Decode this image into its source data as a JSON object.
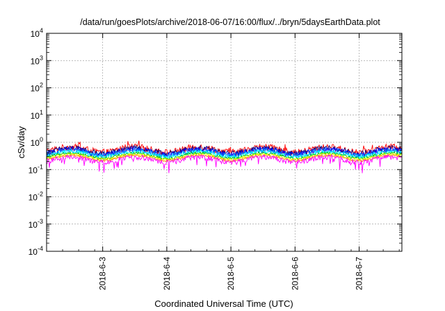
{
  "chart_data": {
    "type": "line",
    "title": "/data/run/goesPlots/archive/2018-06-07/16:00/flux/../bryn/5daysEarthData.plot",
    "xlabel": "Coordinated Universal Time (UTC)",
    "ylabel": "cSv/day",
    "y_scale": "log",
    "ylim": [
      0.0001,
      10000
    ],
    "y_ticks": [
      {
        "base": "10",
        "exp": "4"
      },
      {
        "base": "10",
        "exp": "3"
      },
      {
        "base": "10",
        "exp": "2"
      },
      {
        "base": "10",
        "exp": "1"
      },
      {
        "base": "10",
        "exp": "0"
      },
      {
        "base": "10",
        "exp": "-1"
      },
      {
        "base": "10",
        "exp": "-2"
      },
      {
        "base": "10",
        "exp": "-3"
      },
      {
        "base": "10",
        "exp": "-4"
      }
    ],
    "xlim": [
      "2018-06-02T03:00",
      "2018-06-07T16:00"
    ],
    "x_ticks": [
      "2018-6-3",
      "2018-6-4",
      "2018-6-5",
      "2018-6-6",
      "2018-6-7"
    ],
    "grid": true,
    "legend": "none",
    "series": [
      {
        "color": "#ff0000",
        "base": 0.56,
        "amp": 0.28
      },
      {
        "color": "#000080",
        "base": 0.5,
        "amp": 0.24
      },
      {
        "color": "#0000ff",
        "base": 0.46,
        "amp": 0.22
      },
      {
        "color": "#0080ff",
        "base": 0.42,
        "amp": 0.2
      },
      {
        "color": "#00ffff",
        "base": 0.38,
        "amp": 0.16
      },
      {
        "color": "#00c000",
        "base": 0.33,
        "amp": 0.12
      },
      {
        "color": "#ffff00",
        "base": 0.3,
        "amp": 0.1
      },
      {
        "color": "#ff8000",
        "base": 0.27,
        "amp": 0.09
      },
      {
        "color": "#ff00ff",
        "base": 0.24,
        "amp": 0.22
      }
    ]
  }
}
